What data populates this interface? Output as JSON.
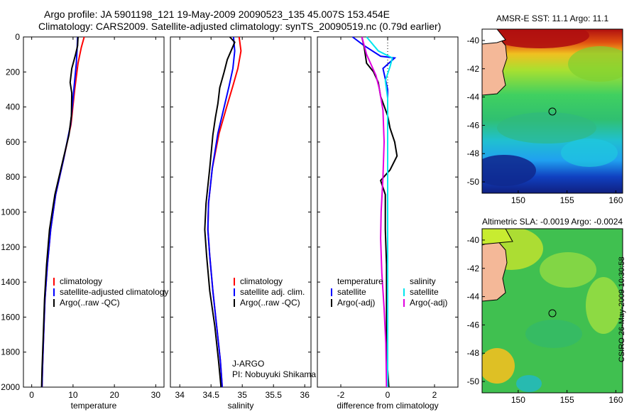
{
  "header": {
    "line1": "Argo profile: JA 5901198_121 19-May-2009 20090523_135 45.007S 153.454E",
    "line2": "Climatology: CARS2009. Satellite-adjusted climatology: synTS_20090519.nc (0.79d earlier)"
  },
  "credit": "CSIRO 26-May-2009 10:30:58",
  "colors": {
    "clim": "#ff0000",
    "sat": "#0000ff",
    "argo": "#000000",
    "sat_cyan": "#00e5ee",
    "argo_mag": "#e000e0"
  },
  "chart_data": [
    {
      "type": "line",
      "id": "temperature",
      "xlabel": "temperature",
      "ylim": [
        2000,
        0
      ],
      "xlim": [
        -2,
        32
      ],
      "xticks": [
        0,
        10,
        20,
        30
      ],
      "yticks": [
        0,
        200,
        400,
        600,
        800,
        1000,
        1200,
        1400,
        1600,
        1800,
        2000
      ],
      "legend": [
        "climatology",
        "satellite-adjusted climatology",
        "Argo(..raw -QC)"
      ],
      "series": [
        {
          "name": "climatology",
          "color": "clim",
          "points": [
            [
              12.7,
              0
            ],
            [
              12.0,
              60
            ],
            [
              11.2,
              150
            ],
            [
              10.4,
              300
            ],
            [
              9.5,
              500
            ],
            [
              7.7,
              700
            ],
            [
              5.8,
              900
            ],
            [
              4.6,
              1100
            ],
            [
              3.8,
              1300
            ],
            [
              3.2,
              1500
            ],
            [
              2.9,
              1700
            ],
            [
              2.6,
              1900
            ],
            [
              2.5,
              2000
            ]
          ]
        },
        {
          "name": "satellite-adjusted climatology",
          "color": "sat",
          "points": [
            [
              11.1,
              0
            ],
            [
              11.0,
              60
            ],
            [
              10.8,
              150
            ],
            [
              10.2,
              300
            ],
            [
              9.4,
              500
            ],
            [
              7.7,
              700
            ],
            [
              5.8,
              900
            ],
            [
              4.6,
              1100
            ],
            [
              3.8,
              1300
            ],
            [
              3.2,
              1500
            ],
            [
              2.9,
              1700
            ],
            [
              2.6,
              1900
            ],
            [
              2.5,
              2000
            ]
          ]
        },
        {
          "name": "Argo(..raw -QC)",
          "color": "argo",
          "points": [
            [
              11.2,
              0
            ],
            [
              11.1,
              50
            ],
            [
              10.6,
              100
            ],
            [
              9.7,
              180
            ],
            [
              9.3,
              260
            ],
            [
              9.7,
              320
            ],
            [
              9.6,
              450
            ],
            [
              9.0,
              560
            ],
            [
              7.6,
              700
            ],
            [
              5.6,
              900
            ],
            [
              4.3,
              1100
            ],
            [
              3.6,
              1300
            ],
            [
              3.1,
              1500
            ],
            [
              2.8,
              1700
            ],
            [
              2.5,
              1900
            ],
            [
              2.4,
              2000
            ]
          ]
        }
      ]
    },
    {
      "type": "line",
      "id": "salinity",
      "xlabel": "salinity",
      "ylim": [
        2000,
        0
      ],
      "xlim": [
        33.85,
        36.1
      ],
      "xticks": [
        34,
        34.5,
        35,
        35.5,
        36
      ],
      "yticks": [
        0,
        200,
        400,
        600,
        800,
        1000,
        1200,
        1400,
        1600,
        1800,
        2000
      ],
      "legend": [
        "climatology",
        "satellite adj. clim.",
        "Argo(..raw -QC)"
      ],
      "annotation": [
        "J-ARGO",
        "PI: Nobuyuki Shikama"
      ],
      "series": [
        {
          "name": "climatology",
          "color": "clim",
          "points": [
            [
              34.95,
              0
            ],
            [
              34.98,
              80
            ],
            [
              34.93,
              180
            ],
            [
              34.85,
              280
            ],
            [
              34.75,
              400
            ],
            [
              34.63,
              550
            ],
            [
              34.52,
              750
            ],
            [
              34.46,
              950
            ],
            [
              34.45,
              1100
            ],
            [
              34.48,
              1250
            ],
            [
              34.53,
              1450
            ],
            [
              34.59,
              1650
            ],
            [
              34.65,
              1850
            ],
            [
              34.68,
              2000
            ]
          ]
        },
        {
          "name": "satellite adj. clim.",
          "color": "sat",
          "points": [
            [
              34.86,
              0
            ],
            [
              34.88,
              80
            ],
            [
              34.85,
              180
            ],
            [
              34.79,
              280
            ],
            [
              34.71,
              400
            ],
            [
              34.61,
              550
            ],
            [
              34.52,
              750
            ],
            [
              34.46,
              950
            ],
            [
              34.45,
              1100
            ],
            [
              34.48,
              1250
            ],
            [
              34.53,
              1450
            ],
            [
              34.59,
              1650
            ],
            [
              34.65,
              1850
            ],
            [
              34.68,
              2000
            ]
          ]
        },
        {
          "name": "Argo(..raw -QC)",
          "color": "argo",
          "points": [
            [
              34.8,
              0
            ],
            [
              34.88,
              30
            ],
            [
              34.82,
              80
            ],
            [
              34.76,
              130
            ],
            [
              34.71,
              200
            ],
            [
              34.64,
              290
            ],
            [
              34.61,
              380
            ],
            [
              34.57,
              460
            ],
            [
              34.53,
              560
            ],
            [
              34.48,
              750
            ],
            [
              34.42,
              950
            ],
            [
              34.4,
              1100
            ],
            [
              34.43,
              1250
            ],
            [
              34.48,
              1450
            ],
            [
              34.56,
              1650
            ],
            [
              34.62,
              1850
            ],
            [
              34.66,
              2000
            ]
          ]
        }
      ]
    },
    {
      "type": "line",
      "id": "difference",
      "xlabel": "difference from climatology",
      "ylim": [
        2000,
        0
      ],
      "xlim": [
        -3,
        3
      ],
      "xticks": [
        -2,
        0,
        2
      ],
      "yticks": [
        0,
        200,
        400,
        600,
        800,
        1000,
        1200,
        1400,
        1600,
        1800,
        2000
      ],
      "legend": [
        "temperature",
        "satellite",
        "Argo(-adj)",
        "salinity",
        "satellite",
        "Argo(-adj)"
      ],
      "series": [
        {
          "name": "temperature satellite",
          "color": "sat",
          "points": [
            [
              -1.5,
              0
            ],
            [
              -1.0,
              50
            ],
            [
              -0.3,
              110
            ],
            [
              0.3,
              120
            ],
            [
              -0.2,
              180
            ],
            [
              0,
              300
            ],
            [
              0,
              2000
            ]
          ]
        },
        {
          "name": "temperature Argo(-adj)",
          "color": "argo",
          "points": [
            [
              -1.1,
              0
            ],
            [
              -1.0,
              60
            ],
            [
              -0.9,
              150
            ],
            [
              -0.6,
              200
            ],
            [
              -0.4,
              260
            ],
            [
              -0.3,
              340
            ],
            [
              0,
              450
            ],
            [
              0.1,
              520
            ],
            [
              0.3,
              600
            ],
            [
              0.4,
              680
            ],
            [
              0.1,
              760
            ],
            [
              -0.3,
              820
            ],
            [
              -0.1,
              900
            ],
            [
              -0.1,
              1100
            ],
            [
              -0.05,
              1300
            ],
            [
              -0.05,
              1500
            ],
            [
              -0.05,
              1700
            ],
            [
              0,
              1900
            ],
            [
              0.05,
              2000
            ]
          ]
        },
        {
          "name": "salinity satellite",
          "color": "sat_cyan",
          "points": [
            [
              -0.9,
              0
            ],
            [
              -0.4,
              80
            ],
            [
              0.2,
              120
            ],
            [
              0.1,
              170
            ],
            [
              -0.1,
              250
            ],
            [
              0,
              350
            ],
            [
              0,
              2000
            ]
          ]
        },
        {
          "name": "salinity Argo(-adj)",
          "color": "argo_mag",
          "points": [
            [
              -1.1,
              0
            ],
            [
              -1.0,
              50
            ],
            [
              -0.9,
              100
            ],
            [
              -0.7,
              160
            ],
            [
              -0.5,
              220
            ],
            [
              -0.35,
              300
            ],
            [
              -0.2,
              420
            ],
            [
              -0.15,
              600
            ],
            [
              -0.2,
              800
            ],
            [
              -0.28,
              1000
            ],
            [
              -0.3,
              1150
            ],
            [
              -0.25,
              1350
            ],
            [
              -0.15,
              1550
            ],
            [
              -0.08,
              1750
            ],
            [
              -0.05,
              2000
            ]
          ]
        }
      ]
    },
    {
      "type": "heatmap",
      "id": "sst_map",
      "title": "AMSR-E SST: 11.1 Argo: 11.1",
      "xlim": [
        146.3,
        160.7
      ],
      "ylim": [
        -50.8,
        -39.2
      ],
      "xticks": [
        150,
        155,
        160
      ],
      "yticks": [
        -40,
        -42,
        -44,
        -46,
        -48,
        -50
      ],
      "marker": {
        "lon": 153.454,
        "lat": -45.007
      }
    },
    {
      "type": "heatmap",
      "id": "sla_map",
      "title": "Altimetric SLA: -0.0019 Argo: -0.0024",
      "xlim": [
        146.3,
        160.7
      ],
      "ylim": [
        -50.8,
        -39.2
      ],
      "xticks": [
        150,
        155,
        160
      ],
      "yticks": [
        -40,
        -42,
        -44,
        -46,
        -48,
        -50
      ],
      "marker": {
        "lon": 153.454,
        "lat": -45.007
      }
    }
  ]
}
